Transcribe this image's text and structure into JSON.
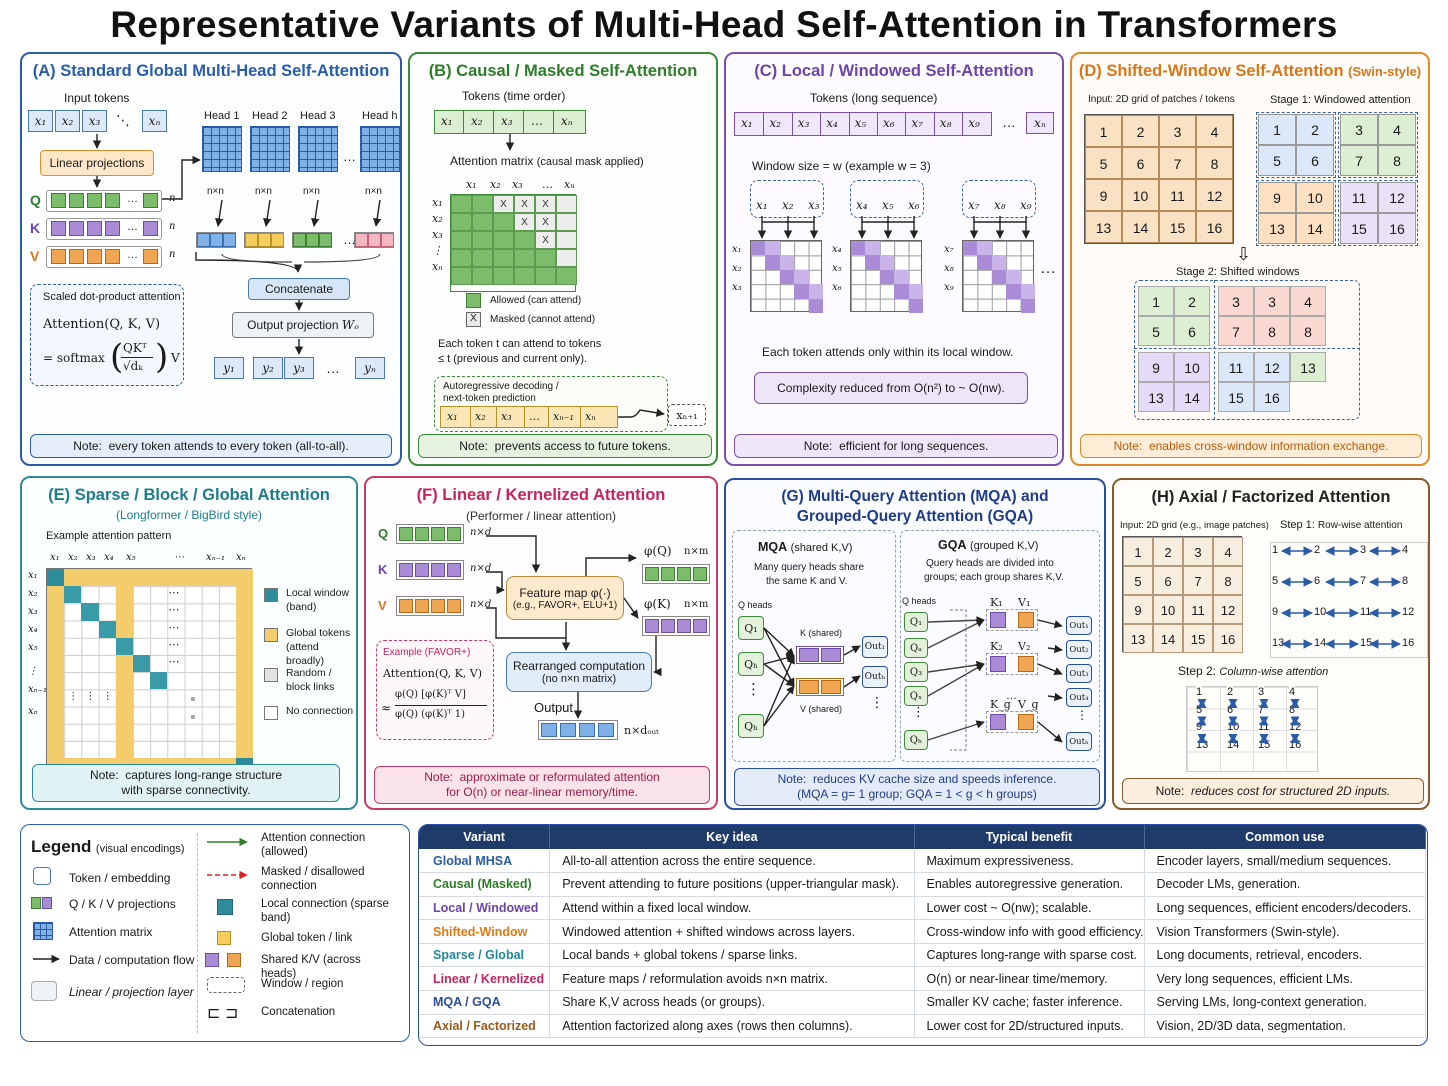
{
  "title": "Representative Variants of Multi-Head Self-Attention in Transformers",
  "colors": {
    "blue": "#2a5ca8",
    "green": "#3c8b3a",
    "purple": "#7a4fb0",
    "orange": "#e08a2a",
    "teal": "#2e8b99",
    "pink": "#c9396a",
    "navy": "#1f3b6a",
    "brown": "#8a5a2b"
  },
  "panelA": {
    "title": "(A) Standard Global Multi-Head Self-Attention",
    "input_label": "Input tokens",
    "tokens": [
      "x₁",
      "x₂",
      "x₃",
      "⋱",
      "xₙ"
    ],
    "linear": "Linear projections",
    "qkv": [
      "Q",
      "K",
      "V"
    ],
    "n": "n",
    "heads": [
      "Head 1",
      "Head 2",
      "Head 3",
      "…",
      "Head h"
    ],
    "nxn": "n×n",
    "concat": "Concatenate",
    "output_proj": "Output projection",
    "wo": "Wₒ",
    "outputs": [
      "y₁",
      "y₂",
      "y₃",
      "…",
      "yₙ"
    ],
    "sdpa_title": "Scaled dot-product attention",
    "formula1": "Attention(Q, K, V)",
    "formula2_prefix": "= softmax",
    "formula_num": "QKᵀ",
    "formula_den": "√dₖ",
    "formula_v": "V",
    "note_label": "Note:",
    "note": "every token attends to every token (all-to-all)."
  },
  "panelB": {
    "title": "(B) Causal / Masked Self-Attention",
    "tokens_label": "Tokens (time order)",
    "tokens": [
      "x₁",
      "x₂",
      "x₃",
      "…",
      "xₙ"
    ],
    "matrix_label": "Attention matrix",
    "matrix_sub": "(causal mask applied)",
    "col_labels": [
      "x₁",
      "x₂",
      "x₃",
      "…",
      "xₙ"
    ],
    "row_labels": [
      "x₁",
      "x₂",
      "x₃",
      "⋮",
      "xₙ"
    ],
    "mask": "X",
    "legend_allowed": "Allowed (can attend)",
    "legend_masked": "Masked (cannot attend)",
    "desc1": "Each token t  can attend to tokens",
    "desc2": "≤ t  (previous and current only).",
    "auto_title1": "Autoregressive decoding /",
    "auto_title2": "next-token prediction",
    "auto_tokens": [
      "x₁",
      "x₂",
      "x₃",
      "…",
      "xₙ₋₁",
      "xₙ"
    ],
    "next_token": "xₙ₊₁",
    "note_label": "Note:",
    "note": "prevents access to future tokens."
  },
  "panelC": {
    "title": "(C) Local / Windowed Self-Attention",
    "tokens_label": "Tokens (long sequence)",
    "tokens": [
      "x₁",
      "x₂",
      "x₃",
      "x₄",
      "x₅",
      "x₆",
      "x₇",
      "x₈",
      "x₉",
      "…",
      "xₙ"
    ],
    "window_label": "Window size = w  (example w = 3)",
    "windows": [
      [
        "x₁",
        "x₂",
        "x₃"
      ],
      [
        "x₄",
        "x₅",
        "x₆"
      ],
      [
        "x₇",
        "x₈",
        "x₉"
      ]
    ],
    "ellipsis": "…",
    "desc": "Each token attends only within its local window.",
    "complexity": "Complexity reduced from O(n²) to ~ O(nw).",
    "note_label": "Note:",
    "note": "efficient for long sequences."
  },
  "panelD": {
    "title": "(D) Shifted-Window Self-Attention",
    "title_suffix": "(Swin-style)",
    "input_label": "Input: 2D grid of patches / tokens",
    "stage1": "Stage 1: Windowed attention",
    "stage2": "Stage 2: Shifted windows",
    "grid": [
      [
        "1",
        "2",
        "3",
        "4"
      ],
      [
        "5",
        "6",
        "7",
        "8"
      ],
      [
        "9",
        "10",
        "11",
        "12"
      ],
      [
        "13",
        "14",
        "15",
        "16"
      ]
    ],
    "shifted": [
      [
        "1",
        "2",
        "3",
        "3",
        "4"
      ],
      [
        "5",
        "6",
        "7",
        "8",
        "8"
      ],
      [
        "9",
        "10",
        "11",
        "12",
        "13"
      ],
      [
        "13",
        "14",
        "15",
        "16",
        ""
      ]
    ],
    "note_label": "Note:",
    "note": "enables cross-window information exchange."
  },
  "panelE": {
    "title": "(E) Sparse / Block / Global Attention",
    "subtitle": "(Longformer / BigBird style)",
    "pattern_label": "Example attention pattern",
    "col_labels": [
      "x₁",
      "x₂",
      "x₃",
      "x₄",
      "x₅",
      "⋯",
      "xₙ₋₁",
      "xₙ"
    ],
    "row_labels": [
      "x₁",
      "x₂",
      "x₃",
      "x₄",
      "x₅",
      "⋮",
      "xₙ₋₁",
      "xₙ"
    ],
    "dots": "⋯",
    "legend": [
      "Local window (band)",
      "Global tokens (attend broadly)",
      "Random / block links",
      "No connection"
    ],
    "note_label": "Note:",
    "note1": "captures long-range structure",
    "note2": "with sparse connectivity."
  },
  "panelF": {
    "title": "(F) Linear / Kernelized Attention",
    "subtitle": "(Performer / linear attention)",
    "qkv": [
      "Q",
      "K",
      "V"
    ],
    "dims": [
      "n×d",
      "n×d",
      "n×d"
    ],
    "feature_map": "Feature map φ(·)",
    "feature_sub": "(e.g., FAVOR+, ELU+1)",
    "phiq": "φ(Q)",
    "phik": "φ(K)",
    "nxm": "n×m",
    "example_title": "Example (FAVOR+)",
    "example_f1": "Attention(Q, K, V)",
    "example_num": "φ(Q) [φ(K)ᵀ V]",
    "example_den": "φ(Q) (φ(K)ᵀ 1)",
    "approx": "≈",
    "rearranged1": "Rearranged computation",
    "rearranged2": "(no n×n matrix)",
    "output": "Output",
    "output_dim": "n×dₒᵤₜ",
    "note_label": "Note:",
    "note1": "approximate or reformulated attention",
    "note2": "for O(n) or near-linear memory/time."
  },
  "panelG": {
    "title1": "(G) Multi-Query Attention (MQA) and",
    "title2": "Grouped-Query Attention (GQA)",
    "mqa_title": "MQA",
    "mqa_sub": "(shared K,V)",
    "mqa_desc1": "Many query heads share",
    "mqa_desc2": "the same K and V.",
    "q_heads": "Q heads",
    "mqa_q": [
      "Q₁",
      "Qₕ",
      "⋮",
      "Qₕ"
    ],
    "k_shared": "K (shared)",
    "v_shared": "V (shared)",
    "mqa_out": [
      "Out₁",
      "Outₕ",
      "⋮"
    ],
    "gqa_title": "GQA",
    "gqa_sub": "(grouped K,V)",
    "gqa_desc1": "Query heads are divided into",
    "gqa_desc2": "groups; each group shares K,V.",
    "gqa_q": [
      "Q₁",
      "Qₐ",
      "Q₃",
      "Qₓ",
      "⋮",
      "Qₕ"
    ],
    "gqa_kv": [
      [
        "K₁",
        "V₁"
      ],
      [
        "K₂",
        "V₂"
      ],
      [
        "K_g",
        "V_g"
      ]
    ],
    "gqa_out": [
      "Out₁",
      "Out₂",
      "Out₃",
      "Out₄",
      "⋮",
      "Outₕ"
    ],
    "note_label": "Note:",
    "note1": "reduces KV cache size and speeds inference.",
    "note2": "(MQA = g= 1 group; GQA = 1 < g < h groups)"
  },
  "panelH": {
    "title": "(H) Axial / Factorized Attention",
    "input_label": "Input: 2D grid (e.g., image patches)",
    "step1": "Step 1:",
    "step1_text": "Row-wise attention",
    "step2": "Step 2:",
    "step2_text": "Column-wise attention",
    "grid": [
      [
        "1",
        "2",
        "3",
        "4"
      ],
      [
        "5",
        "6",
        "7",
        "8"
      ],
      [
        "9",
        "10",
        "11",
        "12"
      ],
      [
        "13",
        "14",
        "15",
        "16"
      ]
    ],
    "note_label": "Note:",
    "note": "reduces cost for structured 2D inputs."
  },
  "legend": {
    "title": "Legend",
    "subtitle": "(visual encodings)",
    "items_left": [
      "Token / embedding",
      "Q / K / V projections",
      "Attention matrix",
      "Data / computation flow",
      "Linear / projection layer"
    ],
    "items_right": [
      "Attention connection (allowed)",
      "Masked / disallowed connection",
      "Local connection (sparse band)",
      "Global token / link",
      "Shared K/V (across heads)",
      "Window / region",
      "Concatenation"
    ]
  },
  "summary": {
    "headers": [
      "Variant",
      "Key idea",
      "Typical benefit",
      "Common use"
    ],
    "rows": [
      [
        "Global MHSA",
        "All-to-all attention across the entire sequence.",
        "Maximum expressiveness.",
        "Encoder layers, small/medium sequences."
      ],
      [
        "Causal (Masked)",
        "Prevent attending to future positions (upper-triangular mask).",
        "Enables autoregressive generation.",
        "Decoder LMs, generation."
      ],
      [
        "Local / Windowed",
        "Attend within a fixed local window.",
        "Lower cost ~ O(nw); scalable.",
        "Long sequences, efficient encoders/decoders."
      ],
      [
        "Shifted-Window",
        "Windowed attention + shifted windows across layers.",
        "Cross-window info with good efficiency.",
        "Vision Transformers (Swin-style)."
      ],
      [
        "Sparse / Global",
        "Local bands + global tokens / sparse links.",
        "Captures long-range with sparse cost.",
        "Long documents, retrieval, encoders."
      ],
      [
        "Linear / Kernelized",
        "Feature maps / reformulation avoids n×n matrix.",
        "O(n) or near-linear time/memory.",
        "Very long sequences, efficient LMs."
      ],
      [
        "MQA / GQA",
        "Share K,V across heads (or groups).",
        "Smaller KV cache; faster inference.",
        "Serving LMs, long-context generation."
      ],
      [
        "Axial / Factorized",
        "Attention factorized along axes (rows then columns).",
        "Lower cost for 2D/structured inputs.",
        "Vision, 2D/3D data, segmentation."
      ]
    ],
    "row_colors": [
      "#2a5ca8",
      "#2f7d2c",
      "#6b45a8",
      "#e07a12",
      "#1f8a99",
      "#c4255f",
      "#2a4ea0",
      "#9a5a1e"
    ]
  }
}
